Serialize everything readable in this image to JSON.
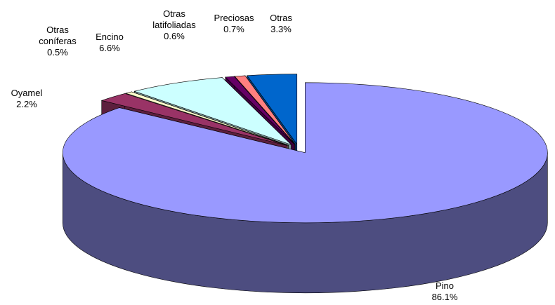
{
  "chart_data": {
    "type": "pie",
    "categories": [
      "Pino",
      "Oyamel",
      "Otras coníferas",
      "Encino",
      "Otras latifoliadas",
      "Preciosas",
      "Otras"
    ],
    "values": [
      86.1,
      2.2,
      0.5,
      6.6,
      0.6,
      0.7,
      3.3
    ],
    "value_labels": [
      "86.1%",
      "2.2%",
      "0.5%",
      "6.6%",
      "0.6%",
      "0.7%",
      "3.3%"
    ],
    "colors": [
      "#9999ff",
      "#993366",
      "#ffffcc",
      "#ccffff",
      "#660066",
      "#ff8080",
      "#0066cc"
    ]
  }
}
